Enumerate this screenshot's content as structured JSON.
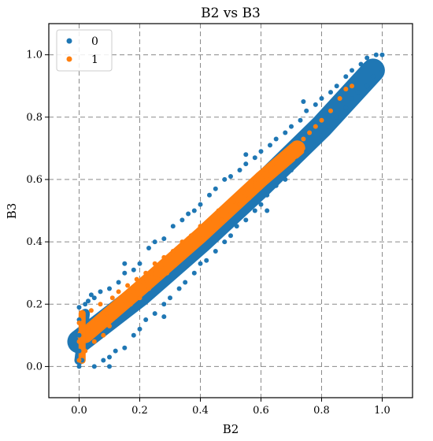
{
  "chart_data": {
    "type": "scatter",
    "title": "B2 vs B3",
    "xlabel": "B2",
    "ylabel": "B3",
    "xlim": [
      -0.1,
      1.1
    ],
    "ylim": [
      -0.1,
      1.1
    ],
    "xticks": [
      "0.0",
      "0.2",
      "0.4",
      "0.6",
      "0.8",
      "1.0"
    ],
    "yticks": [
      "0.0",
      "0.2",
      "0.4",
      "0.6",
      "0.8",
      "1.0"
    ],
    "grid": true,
    "legend_position": "top-left",
    "series": [
      {
        "name": "0",
        "color": "#1f77b4",
        "points": [
          [
            0.0,
            0.0
          ],
          [
            0.0,
            0.05
          ],
          [
            0.0,
            0.1
          ],
          [
            0.0,
            0.15
          ],
          [
            0.0,
            0.19
          ],
          [
            0.01,
            0.02
          ],
          [
            0.02,
            0.2
          ],
          [
            0.03,
            0.21
          ],
          [
            0.05,
            0.0
          ],
          [
            0.05,
            0.22
          ],
          [
            0.07,
            0.24
          ],
          [
            0.08,
            0.02
          ],
          [
            0.1,
            0.03
          ],
          [
            0.1,
            0.25
          ],
          [
            0.12,
            0.05
          ],
          [
            0.13,
            0.27
          ],
          [
            0.15,
            0.06
          ],
          [
            0.15,
            0.3
          ],
          [
            0.18,
            0.1
          ],
          [
            0.18,
            0.31
          ],
          [
            0.2,
            0.12
          ],
          [
            0.2,
            0.33
          ],
          [
            0.22,
            0.15
          ],
          [
            0.23,
            0.38
          ],
          [
            0.25,
            0.17
          ],
          [
            0.25,
            0.4
          ],
          [
            0.28,
            0.2
          ],
          [
            0.28,
            0.41
          ],
          [
            0.3,
            0.22
          ],
          [
            0.31,
            0.45
          ],
          [
            0.33,
            0.25
          ],
          [
            0.34,
            0.47
          ],
          [
            0.35,
            0.27
          ],
          [
            0.36,
            0.49
          ],
          [
            0.38,
            0.3
          ],
          [
            0.38,
            0.5
          ],
          [
            0.4,
            0.33
          ],
          [
            0.4,
            0.52
          ],
          [
            0.42,
            0.34
          ],
          [
            0.43,
            0.55
          ],
          [
            0.45,
            0.37
          ],
          [
            0.45,
            0.57
          ],
          [
            0.48,
            0.4
          ],
          [
            0.48,
            0.6
          ],
          [
            0.5,
            0.42
          ],
          [
            0.5,
            0.61
          ],
          [
            0.52,
            0.45
          ],
          [
            0.53,
            0.63
          ],
          [
            0.55,
            0.47
          ],
          [
            0.55,
            0.65
          ],
          [
            0.58,
            0.5
          ],
          [
            0.58,
            0.67
          ],
          [
            0.6,
            0.52
          ],
          [
            0.6,
            0.69
          ],
          [
            0.62,
            0.55
          ],
          [
            0.63,
            0.71
          ],
          [
            0.65,
            0.58
          ],
          [
            0.65,
            0.73
          ],
          [
            0.68,
            0.6
          ],
          [
            0.68,
            0.75
          ],
          [
            0.7,
            0.63
          ],
          [
            0.7,
            0.77
          ],
          [
            0.72,
            0.66
          ],
          [
            0.73,
            0.79
          ],
          [
            0.75,
            0.69
          ],
          [
            0.75,
            0.82
          ],
          [
            0.78,
            0.71
          ],
          [
            0.78,
            0.84
          ],
          [
            0.8,
            0.74
          ],
          [
            0.8,
            0.86
          ],
          [
            0.82,
            0.77
          ],
          [
            0.83,
            0.88
          ],
          [
            0.85,
            0.8
          ],
          [
            0.85,
            0.9
          ],
          [
            0.88,
            0.83
          ],
          [
            0.88,
            0.93
          ],
          [
            0.9,
            0.86
          ],
          [
            0.9,
            0.95
          ],
          [
            0.92,
            0.88
          ],
          [
            0.93,
            0.97
          ],
          [
            0.95,
            0.9
          ],
          [
            0.95,
            0.99
          ],
          [
            0.97,
            0.93
          ],
          [
            0.98,
            1.0
          ],
          [
            1.0,
            0.95
          ],
          [
            1.0,
            1.0
          ],
          [
            0.74,
            0.85
          ],
          [
            0.8,
            0.78
          ],
          [
            0.55,
            0.68
          ],
          [
            0.62,
            0.5
          ],
          [
            0.28,
            0.16
          ],
          [
            0.15,
            0.33
          ],
          [
            0.1,
            0.0
          ],
          [
            0.04,
            0.23
          ]
        ]
      },
      {
        "name": "1",
        "color": "#ff7f0e",
        "points": [
          [
            0.0,
            0.02
          ],
          [
            0.0,
            0.08
          ],
          [
            0.0,
            0.14
          ],
          [
            0.01,
            0.17
          ],
          [
            0.02,
            0.05
          ],
          [
            0.03,
            0.12
          ],
          [
            0.04,
            0.18
          ],
          [
            0.05,
            0.08
          ],
          [
            0.06,
            0.15
          ],
          [
            0.07,
            0.2
          ],
          [
            0.08,
            0.1
          ],
          [
            0.09,
            0.17
          ],
          [
            0.1,
            0.13
          ],
          [
            0.11,
            0.22
          ],
          [
            0.12,
            0.16
          ],
          [
            0.13,
            0.24
          ],
          [
            0.14,
            0.18
          ],
          [
            0.15,
            0.21
          ],
          [
            0.16,
            0.26
          ],
          [
            0.17,
            0.2
          ],
          [
            0.18,
            0.24
          ],
          [
            0.19,
            0.28
          ],
          [
            0.2,
            0.22
          ],
          [
            0.21,
            0.27
          ],
          [
            0.22,
            0.3
          ],
          [
            0.23,
            0.25
          ],
          [
            0.24,
            0.3
          ],
          [
            0.25,
            0.33
          ],
          [
            0.26,
            0.28
          ],
          [
            0.27,
            0.32
          ],
          [
            0.28,
            0.35
          ],
          [
            0.29,
            0.3
          ],
          [
            0.3,
            0.35
          ],
          [
            0.31,
            0.37
          ],
          [
            0.32,
            0.33
          ],
          [
            0.33,
            0.38
          ],
          [
            0.34,
            0.4
          ],
          [
            0.35,
            0.36
          ],
          [
            0.36,
            0.41
          ],
          [
            0.37,
            0.42
          ],
          [
            0.38,
            0.39
          ],
          [
            0.39,
            0.43
          ],
          [
            0.4,
            0.45
          ],
          [
            0.41,
            0.41
          ],
          [
            0.42,
            0.46
          ],
          [
            0.43,
            0.47
          ],
          [
            0.44,
            0.44
          ],
          [
            0.45,
            0.48
          ],
          [
            0.46,
            0.5
          ],
          [
            0.47,
            0.47
          ],
          [
            0.48,
            0.51
          ],
          [
            0.49,
            0.52
          ],
          [
            0.5,
            0.49
          ],
          [
            0.51,
            0.53
          ],
          [
            0.52,
            0.55
          ],
          [
            0.53,
            0.52
          ],
          [
            0.54,
            0.56
          ],
          [
            0.55,
            0.57
          ],
          [
            0.56,
            0.54
          ],
          [
            0.57,
            0.58
          ],
          [
            0.58,
            0.6
          ],
          [
            0.59,
            0.57
          ],
          [
            0.6,
            0.61
          ],
          [
            0.61,
            0.62
          ],
          [
            0.62,
            0.6
          ],
          [
            0.63,
            0.63
          ],
          [
            0.64,
            0.65
          ],
          [
            0.65,
            0.62
          ],
          [
            0.66,
            0.66
          ],
          [
            0.67,
            0.67
          ],
          [
            0.68,
            0.65
          ],
          [
            0.69,
            0.68
          ],
          [
            0.7,
            0.7
          ],
          [
            0.72,
            0.71
          ],
          [
            0.74,
            0.73
          ],
          [
            0.76,
            0.75
          ],
          [
            0.78,
            0.77
          ],
          [
            0.8,
            0.79
          ],
          [
            0.83,
            0.82
          ],
          [
            0.86,
            0.86
          ],
          [
            0.88,
            0.89
          ],
          [
            0.9,
            0.9
          ]
        ]
      }
    ]
  }
}
